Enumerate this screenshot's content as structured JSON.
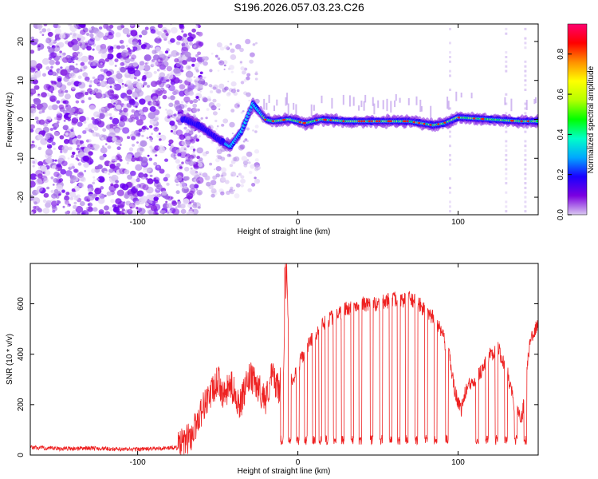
{
  "title": "S196.2026.057.03.23.C26",
  "chart_data": [
    {
      "type": "heatmap",
      "xlabel": "Height of straight line (km)",
      "ylabel": "Frequency (Hz)",
      "xlim": [
        -167,
        150
      ],
      "ylim": [
        -24.5,
        24.5
      ],
      "x_ticks": [
        -100,
        0,
        100
      ],
      "y_ticks": [
        -20,
        -10,
        0,
        10,
        20
      ],
      "colorbar": {
        "label": "Normalized spectral amplitude",
        "range": [
          0,
          0.95
        ],
        "ticks": [
          "0.0",
          "0.2",
          "0.4",
          "0.6",
          "0.8"
        ],
        "colors": [
          "#d9c8f0",
          "#7a00e0",
          "#1a00ff",
          "#00a8ff",
          "#00ffc8",
          "#00ff00",
          "#b4ff00",
          "#ffff00",
          "#ff9000",
          "#ff0000",
          "#ff0070"
        ]
      },
      "ridge": {
        "description_points": {
          "x": [
            -70,
            -60,
            -50,
            -42,
            -35,
            -28,
            -24,
            -20,
            -15,
            -5,
            5,
            15,
            30,
            50,
            70,
            85,
            92,
            100,
            120,
            140,
            150
          ],
          "y": [
            0,
            -2,
            -5,
            -7,
            -3,
            4,
            2,
            0,
            -0.5,
            0,
            -1,
            0,
            -0.5,
            -0.5,
            -0.5,
            -1.5,
            -1,
            0.5,
            0,
            -0.5,
            -0.5
          ]
        }
      },
      "noise_region_x": [
        -167,
        -70
      ],
      "vertical_streaks_x": [
        95,
        130,
        142
      ]
    },
    {
      "type": "line",
      "xlabel": "Height of straight line (km)",
      "ylabel": "SNR (10 * v/v)",
      "xlim": [
        -167,
        150
      ],
      "ylim": [
        0,
        760
      ],
      "x_ticks": [
        -100,
        0,
        100
      ],
      "y_ticks": [
        0,
        200,
        400,
        600
      ],
      "color": "#ee2222",
      "series": [
        {
          "name": "SNR",
          "x": [
            -167,
            -150,
            -130,
            -110,
            -90,
            -75,
            -66,
            -62,
            -57,
            -52,
            -50,
            -46,
            -42,
            -36,
            -30,
            -25,
            -20,
            -16,
            -12,
            -9,
            -7,
            -5,
            0,
            5,
            10,
            15,
            20,
            25,
            30,
            35,
            40,
            45,
            50,
            55,
            60,
            65,
            70,
            75,
            80,
            85,
            90,
            95,
            98,
            102,
            105,
            110,
            115,
            120,
            125,
            130,
            135,
            140,
            145,
            150
          ],
          "y": [
            30,
            25,
            28,
            22,
            25,
            30,
            80,
            150,
            220,
            260,
            300,
            230,
            280,
            200,
            310,
            270,
            220,
            320,
            260,
            330,
            740,
            280,
            350,
            420,
            470,
            520,
            540,
            560,
            580,
            590,
            600,
            590,
            600,
            610,
            620,
            610,
            620,
            600,
            570,
            540,
            480,
            380,
            250,
            180,
            260,
            300,
            340,
            400,
            420,
            350,
            200,
            150,
            460,
            520
          ]
        }
      ],
      "dropout_x": [
        -10,
        -5,
        0,
        5,
        10,
        14,
        18,
        23,
        28,
        34,
        39,
        46,
        52,
        58,
        63,
        68,
        74,
        80,
        86,
        93,
        112,
        118,
        124,
        130,
        136,
        142
      ]
    }
  ]
}
